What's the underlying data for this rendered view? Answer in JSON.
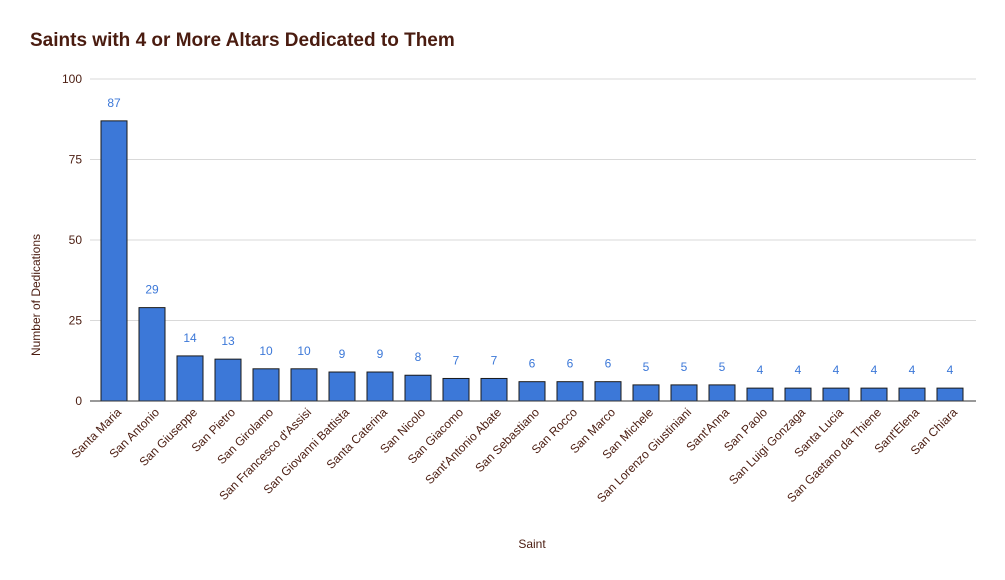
{
  "colors": {
    "bar_fill": "#3c78d8",
    "bar_stroke": "#1a1a1a",
    "data_label": "#3c78d8",
    "text_dark": "#4a1c10",
    "grid": "#d9d9d9",
    "axis": "#333333"
  },
  "chart_data": {
    "type": "bar",
    "title": "Saints with 4 or More Altars Dedicated to Them",
    "xlabel": "Saint",
    "ylabel": "Number of Dedications",
    "ylim": [
      0,
      100
    ],
    "yticks": [
      0,
      25,
      50,
      75,
      100
    ],
    "grid": true,
    "legend": "none",
    "categories": [
      "Santa Maria",
      "San Antonio",
      "San Giuseppe",
      "San Pietro",
      "San Girolamo",
      "San Francesco d'Assisi",
      "San Giovanni Battista",
      "Santa Caterina",
      "San Nicolo",
      "San Giacomo",
      "Sant'Antonio Abate",
      "San Sebastiano",
      "San Rocco",
      "San Marco",
      "San Michele",
      "San Lorenzo Giustiniani",
      "Sant'Anna",
      "San Paolo",
      "San Luigi Gonzaga",
      "Santa Lucia",
      "San Gaetano da Thiene",
      "Sant'Elena",
      "San Chiara"
    ],
    "values": [
      87,
      29,
      14,
      13,
      10,
      10,
      9,
      9,
      8,
      7,
      7,
      6,
      6,
      6,
      5,
      5,
      5,
      4,
      4,
      4,
      4,
      4,
      4
    ]
  }
}
